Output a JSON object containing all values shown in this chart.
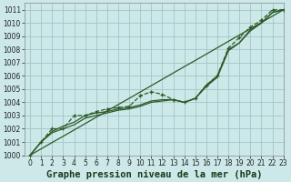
{
  "xlabel": "Graphe pression niveau de la mer (hPa)",
  "background_color": "#cce8e8",
  "grid_color": "#9bbfbf",
  "line_color": "#2d5a27",
  "xlim": [
    -0.5,
    23
  ],
  "ylim": [
    1000,
    1011.5
  ],
  "xticks": [
    0,
    1,
    2,
    3,
    4,
    5,
    6,
    7,
    8,
    9,
    10,
    11,
    12,
    13,
    14,
    15,
    16,
    17,
    18,
    19,
    20,
    21,
    22,
    23
  ],
  "yticks": [
    1000,
    1001,
    1002,
    1003,
    1004,
    1005,
    1006,
    1007,
    1008,
    1009,
    1010,
    1011
  ],
  "series_main": [
    1000.0,
    1001.0,
    1002.0,
    1002.0,
    1003.0,
    1003.0,
    1003.3,
    1003.5,
    1003.6,
    1003.7,
    1004.5,
    1004.8,
    1004.6,
    1004.2,
    1004.0,
    1004.3,
    1005.3,
    1006.0,
    1008.1,
    1008.9,
    1009.7,
    1010.2,
    1011.0,
    1011.0
  ],
  "series_smooth1": [
    1000.0,
    1001.0,
    1001.8,
    1002.2,
    1002.5,
    1003.0,
    1003.2,
    1003.3,
    1003.5,
    1003.6,
    1003.8,
    1004.1,
    1004.2,
    1004.2,
    1004.0,
    1004.3,
    1005.3,
    1006.0,
    1008.0,
    1008.5,
    1009.5,
    1010.0,
    1010.8,
    1011.0
  ],
  "series_smooth2": [
    1000.0,
    1001.0,
    1001.7,
    1002.0,
    1002.3,
    1002.8,
    1003.0,
    1003.2,
    1003.4,
    1003.5,
    1003.7,
    1004.0,
    1004.1,
    1004.2,
    1004.0,
    1004.3,
    1005.2,
    1005.9,
    1007.9,
    1008.5,
    1009.4,
    1010.0,
    1010.8,
    1011.0
  ],
  "series_straight": [
    1000.0,
    1000.48,
    1000.96,
    1001.43,
    1001.91,
    1002.39,
    1002.87,
    1003.35,
    1003.83,
    1004.3,
    1004.78,
    1005.26,
    1005.74,
    1006.22,
    1006.7,
    1007.17,
    1007.65,
    1008.13,
    1008.61,
    1009.09,
    1009.57,
    1010.04,
    1010.52,
    1011.0
  ],
  "marker": "+",
  "markersize": 3.5,
  "linewidth": 0.9,
  "xlabel_fontsize": 7.5,
  "tick_fontsize": 5.5
}
